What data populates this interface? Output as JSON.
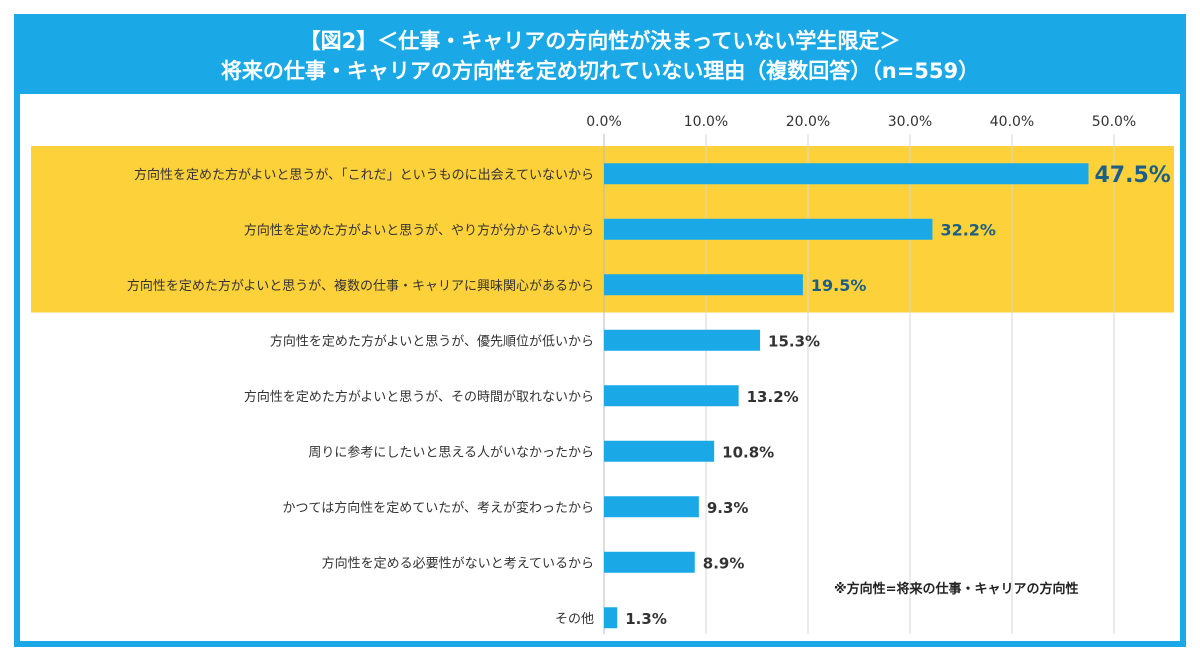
{
  "title": {
    "line1": "【図2】＜仕事・キャリアの方向性が決まっていない学生限定＞",
    "line2": "将来の仕事・キャリアの方向性を定め切れていない理由（複数回答）（n=559）"
  },
  "note": "※方向性=将来の仕事・キャリアの方向性",
  "colors": {
    "frame": "#1aa9e6",
    "bar": "#1aa9e6",
    "highlight": "#fdd13a",
    "value_highlight": "#1c5f86",
    "value_normal": "#333333"
  },
  "chart_data": {
    "type": "bar",
    "orientation": "horizontal",
    "categories": [
      "方向性を定めた方がよいと思うが、「これだ」というものに出会えていないから",
      "方向性を定めた方がよいと思うが、やり方が分からないから",
      "方向性を定めた方がよいと思うが、複数の仕事・キャリアに興味関心があるから",
      "方向性を定めた方がよいと思うが、優先順位が低いから",
      "方向性を定めた方がよいと思うが、その時間が取れないから",
      "周りに参考にしたいと思える人がいなかったから",
      "かつては方向性を定めていたが、考えが変わったから",
      "方向性を定める必要性がないと考えているから",
      "その他"
    ],
    "values": [
      47.5,
      32.2,
      19.5,
      15.3,
      13.2,
      10.8,
      9.3,
      8.9,
      1.3
    ],
    "value_labels": [
      "47.5%",
      "32.2%",
      "19.5%",
      "15.3%",
      "13.2%",
      "10.8%",
      "9.3%",
      "8.9%",
      "1.3%"
    ],
    "highlighted": [
      true,
      true,
      true,
      false,
      false,
      false,
      false,
      false,
      false
    ],
    "xlim": [
      0,
      55
    ],
    "xticks": [
      0,
      10,
      20,
      30,
      40,
      50
    ],
    "xtick_labels": [
      "0.0%",
      "10.0%",
      "20.0%",
      "30.0%",
      "40.0%",
      "50.0%"
    ],
    "grid": true,
    "title": "",
    "xlabel": "",
    "ylabel": ""
  }
}
